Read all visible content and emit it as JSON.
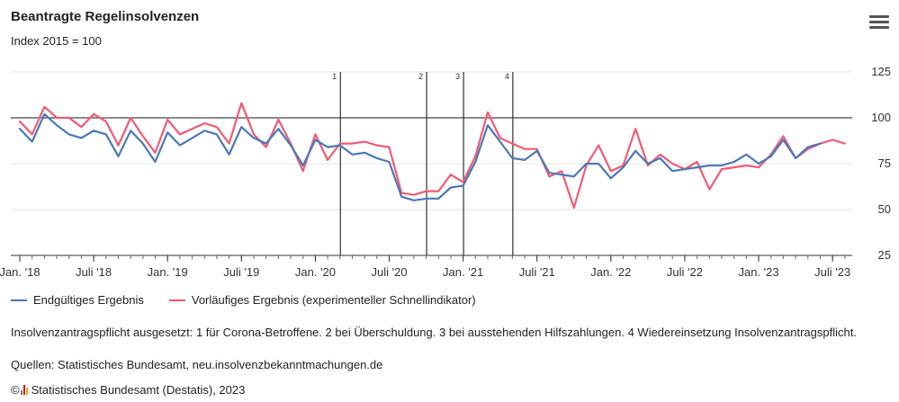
{
  "header": {
    "title": "Beantragte Regelinsolvenzen",
    "subtitle": "Index 2015 = 100",
    "menu_icon": "hamburger-menu-icon"
  },
  "legend": {
    "series1": "Endgültiges Ergebnis",
    "series2": "Vorläufiges Ergebnis (experimenteller Schnellindikator)"
  },
  "note": "Insolvenzantragspflicht ausgesetzt: 1 für Corona-Betroffene. 2 bei Überschuldung. 3 bei ausstehenden Hilfszahlungen. 4 Wiedereinsetzung Insolvenzantragspflicht.",
  "sources": "Quellen: Statistisches Bundesamt, neu.insolvenzbekanntmachungen.de",
  "footer": {
    "copyright": "©",
    "text": "Statistisches Bundesamt (Destatis), 2023"
  },
  "colors": {
    "series1": "#4a78b8",
    "series2": "#f25a73",
    "reference": "#444444",
    "grid": "#e6e6e6"
  },
  "chart_data": {
    "type": "line",
    "title": "Beantragte Regelinsolvenzen",
    "subtitle": "Index 2015 = 100",
    "ylim": [
      25,
      125
    ],
    "yticks": [
      25,
      50,
      75,
      100,
      125
    ],
    "reference_line": 100,
    "x_tick_labels": [
      "Jan. '18",
      "Juli '18",
      "Jan. '19",
      "Juli '19",
      "Jan. '20",
      "Juli '20",
      "Jan. '21",
      "Juli '21",
      "Jan. '22",
      "Juli '22",
      "Jan. '23",
      "Juli '23"
    ],
    "x_tick_months": [
      "2018-01",
      "2018-07",
      "2019-01",
      "2019-07",
      "2020-01",
      "2020-07",
      "2021-01",
      "2021-07",
      "2022-01",
      "2022-07",
      "2023-01",
      "2023-07"
    ],
    "x_start": "2018-01",
    "x_end": "2023-08",
    "markers": [
      {
        "label": "1",
        "month": "2020-03"
      },
      {
        "label": "2",
        "month": "2020-10"
      },
      {
        "label": "3",
        "month": "2021-01"
      },
      {
        "label": "4",
        "month": "2021-05"
      }
    ],
    "series": [
      {
        "name": "Endgültiges Ergebnis",
        "start": "2018-01",
        "values": [
          94,
          87,
          102,
          96,
          91,
          89,
          93,
          91,
          79,
          93,
          86,
          76,
          92,
          85,
          89,
          93,
          91,
          80,
          95,
          89,
          86,
          94,
          85,
          74,
          88,
          84,
          85,
          80,
          81,
          78,
          76,
          57,
          55,
          56,
          56,
          62,
          63,
          76,
          96,
          87,
          78,
          77,
          82,
          70,
          69,
          68,
          75,
          75,
          67,
          73,
          82,
          75,
          78,
          71,
          72,
          73,
          74,
          74,
          76,
          80,
          75,
          79,
          88,
          78,
          84,
          86
        ]
      },
      {
        "name": "Vorläufiges Ergebnis (experimenteller Schnellindikator)",
        "start": "2018-01",
        "values": [
          98,
          91,
          106,
          100,
          100,
          95,
          102,
          98,
          85,
          100,
          90,
          81,
          99,
          91,
          94,
          97,
          95,
          86,
          108,
          91,
          84,
          99,
          86,
          71,
          91,
          77,
          86,
          86,
          87,
          85,
          84,
          59,
          58,
          60,
          60,
          69,
          65,
          79,
          103,
          89,
          86,
          83,
          83,
          68,
          71,
          51,
          74,
          85,
          71,
          74,
          94,
          74,
          80,
          75,
          72,
          76,
          61,
          72,
          73,
          74,
          73,
          80,
          90,
          78,
          83,
          86,
          88,
          86
        ]
      }
    ]
  }
}
